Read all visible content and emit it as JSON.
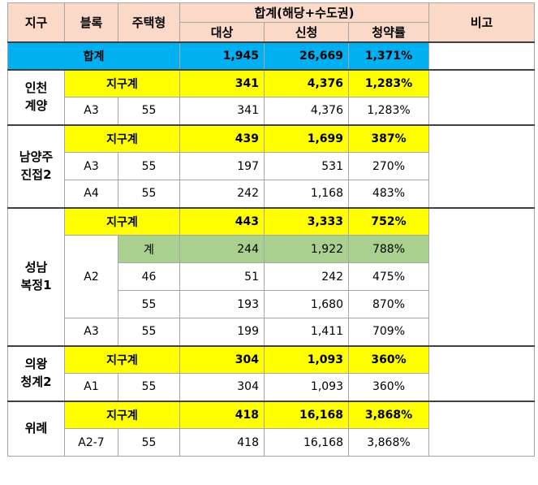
{
  "headers": {
    "district": "지구",
    "block": "블록",
    "housing_type": "주택형",
    "total_group": "합계(해당+수도권)",
    "target": "대상",
    "applied": "신청",
    "rate": "청약률",
    "note": "비고"
  },
  "grand_total": {
    "label": "합계",
    "target": "1,945",
    "applied": "26,669",
    "rate": "1,371%"
  },
  "districts": [
    {
      "name": "인천\n계양",
      "subtotal": {
        "label": "지구계",
        "target": "341",
        "applied": "4,376",
        "rate": "1,283%"
      },
      "rows": [
        {
          "block": "A3",
          "type": "55",
          "target": "341",
          "applied": "4,376",
          "rate": "1,283%"
        }
      ]
    },
    {
      "name": "남양주\n진접2",
      "subtotal": {
        "label": "지구계",
        "target": "439",
        "applied": "1,699",
        "rate": "387%"
      },
      "rows": [
        {
          "block": "A3",
          "type": "55",
          "target": "197",
          "applied": "531",
          "rate": "270%"
        },
        {
          "block": "A4",
          "type": "55",
          "target": "242",
          "applied": "1,168",
          "rate": "483%"
        }
      ]
    },
    {
      "name": "성남\n복정1",
      "subtotal": {
        "label": "지구계",
        "target": "443",
        "applied": "3,333",
        "rate": "752%"
      },
      "block_a2": {
        "block": "A2",
        "sum": {
          "label": "계",
          "target": "244",
          "applied": "1,922",
          "rate": "788%"
        },
        "rows": [
          {
            "type": "46",
            "target": "51",
            "applied": "242",
            "rate": "475%"
          },
          {
            "type": "55",
            "target": "193",
            "applied": "1,680",
            "rate": "870%"
          }
        ]
      },
      "rows": [
        {
          "block": "A3",
          "type": "55",
          "target": "199",
          "applied": "1,411",
          "rate": "709%"
        }
      ]
    },
    {
      "name": "의왕\n청계2",
      "subtotal": {
        "label": "지구계",
        "target": "304",
        "applied": "1,093",
        "rate": "360%"
      },
      "rows": [
        {
          "block": "A1",
          "type": "55",
          "target": "304",
          "applied": "1,093",
          "rate": "360%"
        }
      ]
    },
    {
      "name": "위례",
      "subtotal": {
        "label": "지구계",
        "target": "418",
        "applied": "16,168",
        "rate": "3,868%"
      },
      "rows": [
        {
          "block": "A2-7",
          "type": "55",
          "target": "418",
          "applied": "16,168",
          "rate": "3,868%"
        }
      ]
    }
  ],
  "colors": {
    "header_bg": "#fbd9c8",
    "total_bg": "#00b0f0",
    "subtotal_bg": "#ffff00",
    "sum_bg": "#a9d08e"
  }
}
